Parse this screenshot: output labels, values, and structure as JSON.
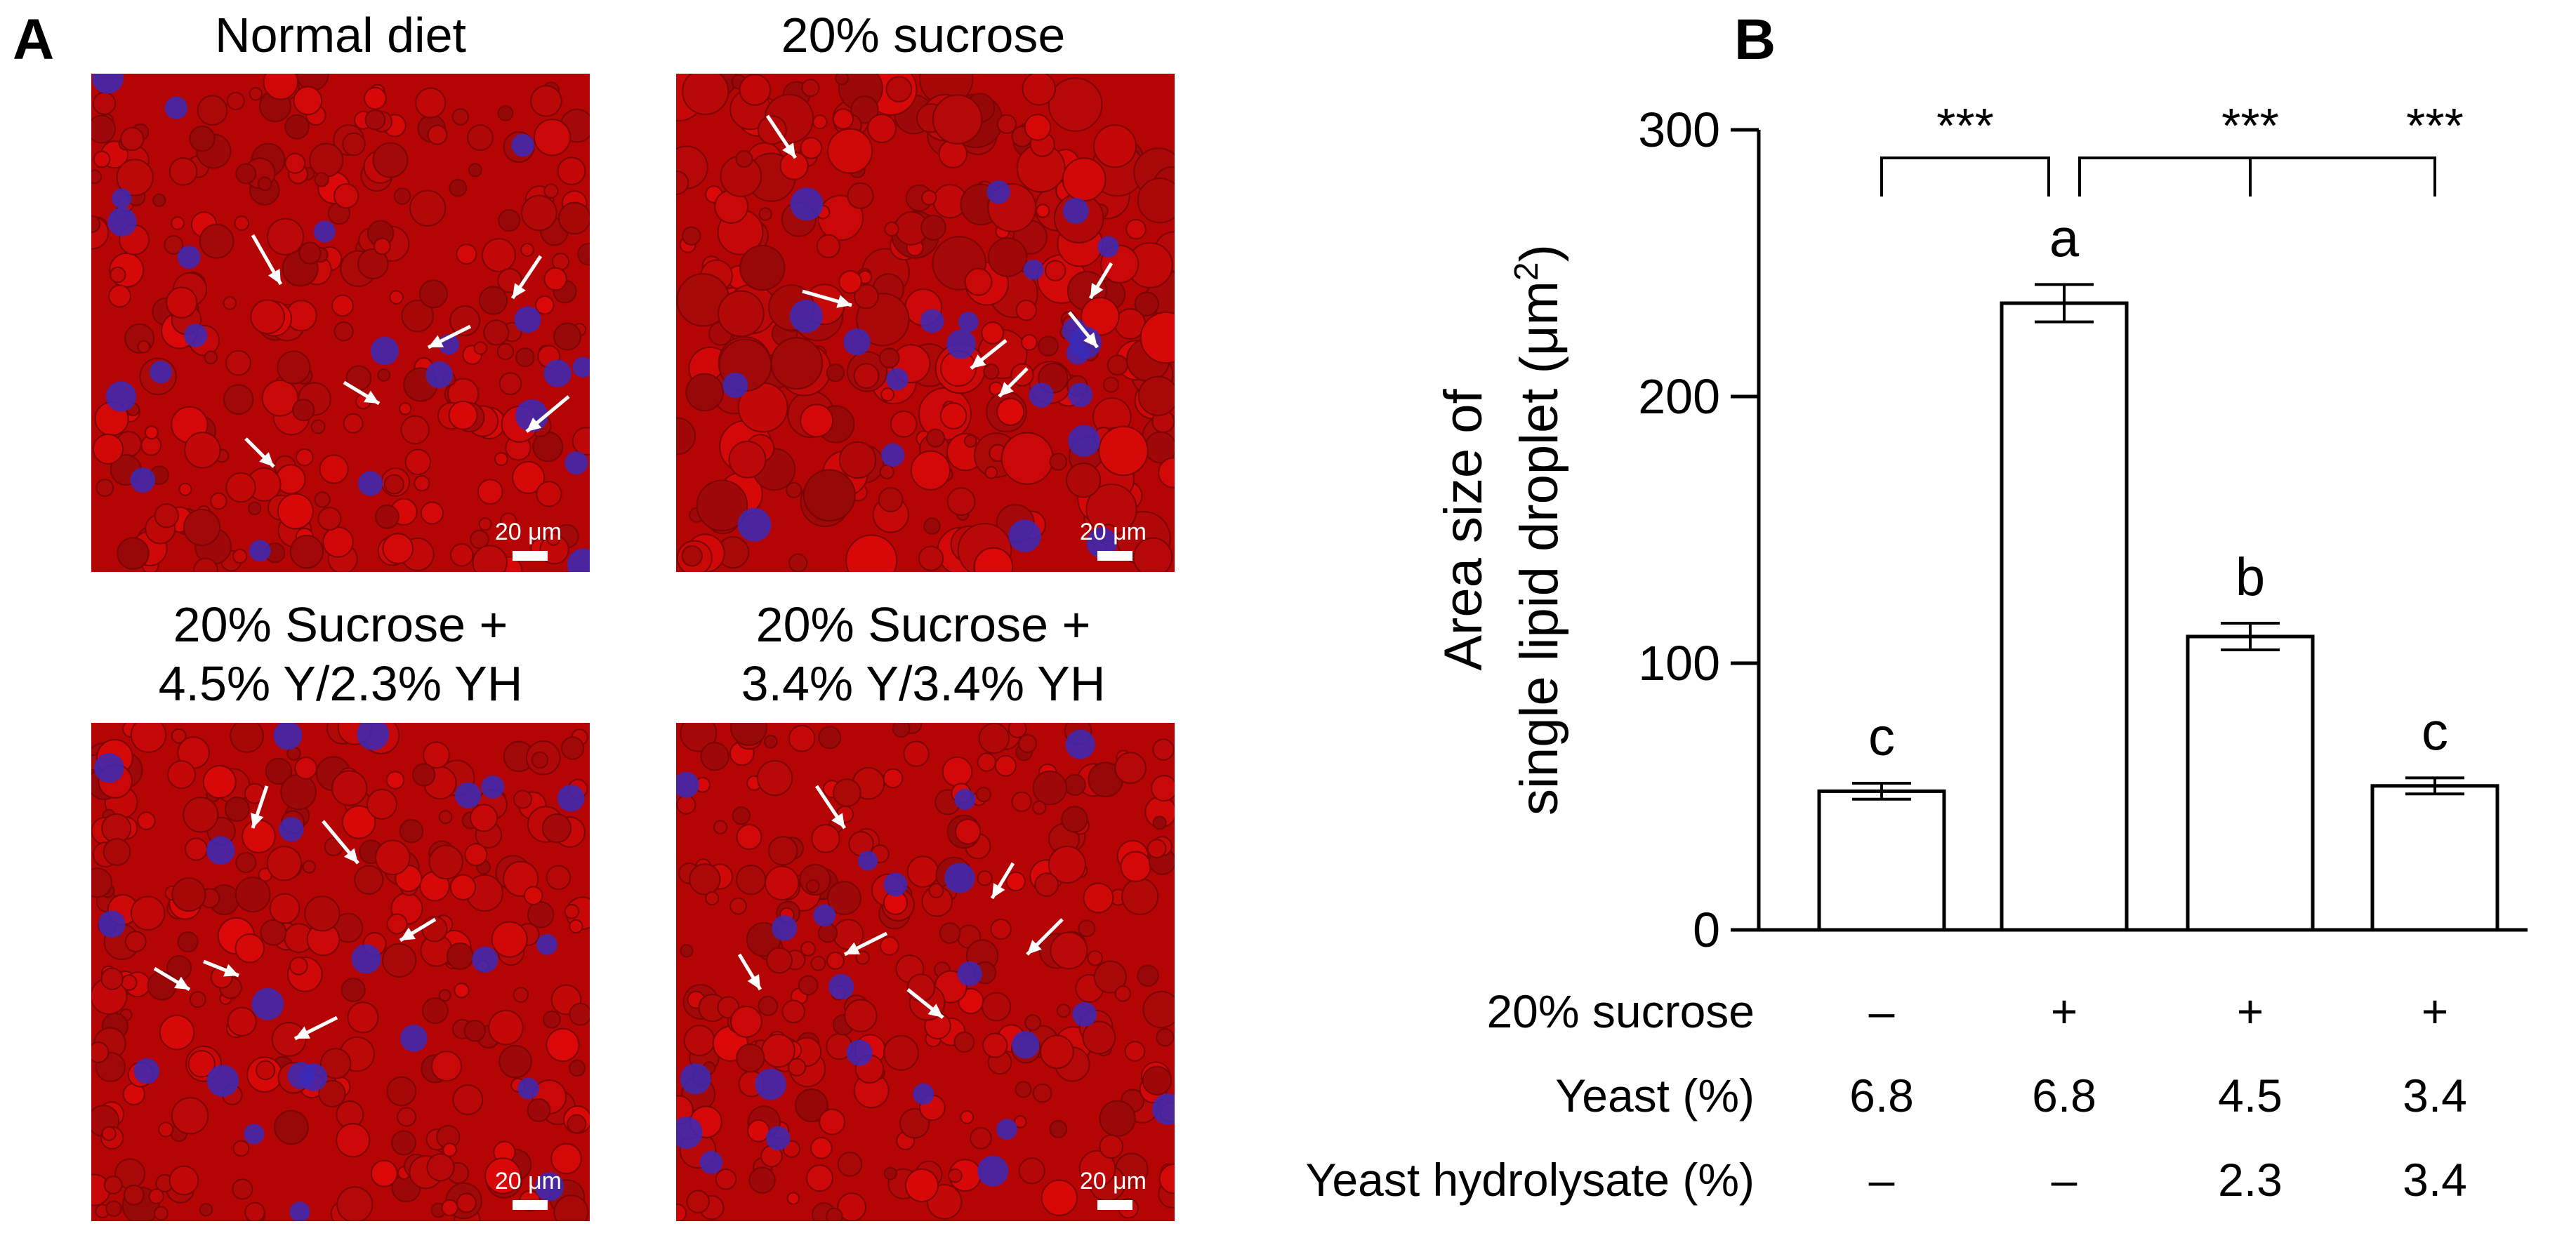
{
  "panel_a": {
    "letter": "A",
    "images": [
      {
        "title": "Normal diet",
        "scale_label": "20 μm"
      },
      {
        "title": "20% sucrose",
        "scale_label": "20 μm"
      },
      {
        "title": "20% Sucrose +\n4.5% Y/2.3% YH",
        "scale_label": "20 μm"
      },
      {
        "title": "20% Sucrose +\n3.4% Y/3.4% YH",
        "scale_label": "20 μm"
      }
    ],
    "colors": {
      "tissue": "#b40404",
      "nuclei": "#3a2ab8",
      "arrow": "#ffffff"
    }
  },
  "panel_b": {
    "letter": "B"
  },
  "chart_data": {
    "type": "bar",
    "categories": [
      "1",
      "2",
      "3",
      "4"
    ],
    "values": [
      52,
      235,
      110,
      54
    ],
    "errors": [
      3,
      7,
      5,
      3
    ],
    "letters": [
      "c",
      "a",
      "b",
      "c"
    ],
    "ylabel_line1": "Area size of",
    "ylabel_line2": "single lipid droplet (μm",
    "ylabel_sup": "2",
    "ylabel_close": ")",
    "ylim": [
      0,
      300
    ],
    "yticks": [
      0,
      100,
      200,
      300
    ],
    "significance": [
      {
        "from": 0,
        "to": 1,
        "label": "***"
      },
      {
        "from": 1,
        "to": 2,
        "label": "***"
      },
      {
        "from": 1,
        "to": 3,
        "label": "***"
      }
    ],
    "bar_fill": "#ffffff",
    "bar_stroke": "#000000",
    "table": {
      "rows": [
        {
          "label": "20% sucrose",
          "values": [
            "–",
            "+",
            "+",
            "+"
          ]
        },
        {
          "label": "Yeast (%)",
          "values": [
            "6.8",
            "6.8",
            "4.5",
            "3.4"
          ]
        },
        {
          "label": "Yeast hydrolysate (%)",
          "values": [
            "–",
            "–",
            "2.3",
            "3.4"
          ]
        }
      ]
    }
  }
}
